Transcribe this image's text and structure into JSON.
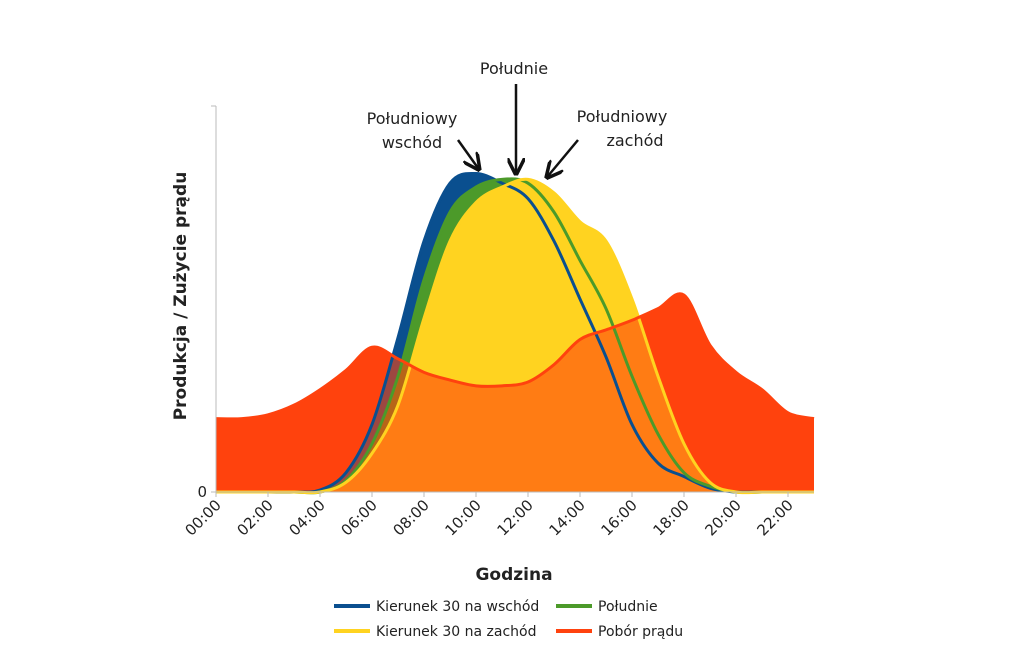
{
  "chart_data": {
    "type": "area",
    "x_label": "Godzina",
    "y_label": "Produkcja / Zużycie prądu",
    "x": [
      0,
      1,
      2,
      3,
      4,
      5,
      6,
      7,
      8,
      9,
      10,
      11,
      12,
      13,
      14,
      15,
      16,
      17,
      18,
      19,
      20,
      21,
      22,
      23
    ],
    "xlim": [
      0,
      23
    ],
    "xticks": [
      {
        "value": 0,
        "label": "00:00"
      },
      {
        "value": 2,
        "label": "02:00"
      },
      {
        "value": 4,
        "label": "04:00"
      },
      {
        "value": 6,
        "label": "06:00"
      },
      {
        "value": 8,
        "label": "08:00"
      },
      {
        "value": 10,
        "label": "10:00"
      },
      {
        "value": 12,
        "label": "12:00"
      },
      {
        "value": 14,
        "label": "14:00"
      },
      {
        "value": 16,
        "label": "16:00"
      },
      {
        "value": 18,
        "label": "18:00"
      },
      {
        "value": 20,
        "label": "20:00"
      },
      {
        "value": 22,
        "label": "22:00"
      }
    ],
    "ylim": [
      0,
      2
    ],
    "yticks": [
      0
    ],
    "series": [
      {
        "name": "Pobór prądu",
        "color": "#ff420e",
        "values": [
          0.38,
          0.38,
          0.4,
          0.45,
          0.53,
          0.63,
          0.75,
          0.69,
          0.62,
          0.58,
          0.55,
          0.55,
          0.57,
          0.66,
          0.79,
          0.84,
          0.89,
          0.95,
          1.02,
          0.76,
          0.62,
          0.53,
          0.41,
          0.38
        ]
      },
      {
        "name": "Kierunek 30 na wschód",
        "color": "#0a4f8f",
        "values": [
          0,
          0,
          0,
          0,
          0.01,
          0.1,
          0.35,
          0.8,
          1.3,
          1.6,
          1.65,
          1.6,
          1.52,
          1.3,
          1.0,
          0.7,
          0.35,
          0.15,
          0.08,
          0.02,
          0,
          0,
          0,
          0
        ]
      },
      {
        "name": "Południe",
        "color": "#4c9a2a",
        "values": [
          0,
          0,
          0,
          0,
          0,
          0.06,
          0.25,
          0.6,
          1.1,
          1.45,
          1.58,
          1.62,
          1.6,
          1.45,
          1.2,
          0.95,
          0.6,
          0.3,
          0.1,
          0.03,
          0,
          0,
          0,
          0
        ]
      },
      {
        "name": "Kierunek 30 na zachód",
        "color": "#ffd320",
        "values": [
          0,
          0,
          0,
          0,
          0,
          0.05,
          0.2,
          0.45,
          0.9,
          1.3,
          1.5,
          1.58,
          1.62,
          1.55,
          1.4,
          1.3,
          1.0,
          0.6,
          0.25,
          0.05,
          0,
          0,
          0,
          0
        ]
      }
    ],
    "annotations": [
      {
        "text": [
          "Południowy",
          "wschód"
        ]
      },
      {
        "text": [
          "Południe"
        ]
      },
      {
        "text": [
          "Południowy",
          "zachód"
        ]
      }
    ]
  }
}
